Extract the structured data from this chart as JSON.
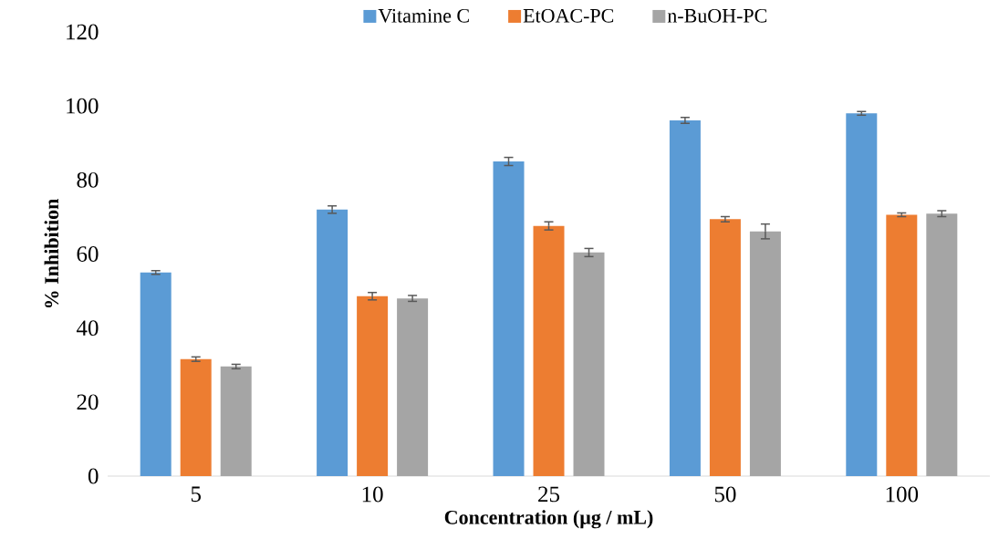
{
  "chart_data": {
    "type": "bar",
    "xlabel": "Concentration (µg / mL)",
    "ylabel": "% Inhibition",
    "categories": [
      "5",
      "10",
      "25",
      "50",
      "100"
    ],
    "series": [
      {
        "name": "Vitamine C",
        "color": "#5b9bd5",
        "values": [
          55,
          72,
          85,
          96.1,
          98
        ],
        "errors": [
          0.5,
          1,
          1.1,
          0.8,
          0.5
        ]
      },
      {
        "name": "EtOAC-PC",
        "color": "#ed7d31",
        "values": [
          31.6,
          48.6,
          67.6,
          69.4,
          70.6
        ],
        "errors": [
          0.6,
          1,
          1.1,
          0.7,
          0.5
        ]
      },
      {
        "name": "n-BuOH-PC",
        "color": "#a5a5a5",
        "values": [
          29.6,
          48,
          60.4,
          66.1,
          70.9
        ],
        "errors": [
          0.6,
          0.8,
          1.1,
          2,
          0.8
        ]
      }
    ],
    "ylim": [
      0,
      120
    ],
    "yticks": [
      0,
      20,
      40,
      60,
      80,
      100,
      120
    ],
    "legend": "top"
  }
}
